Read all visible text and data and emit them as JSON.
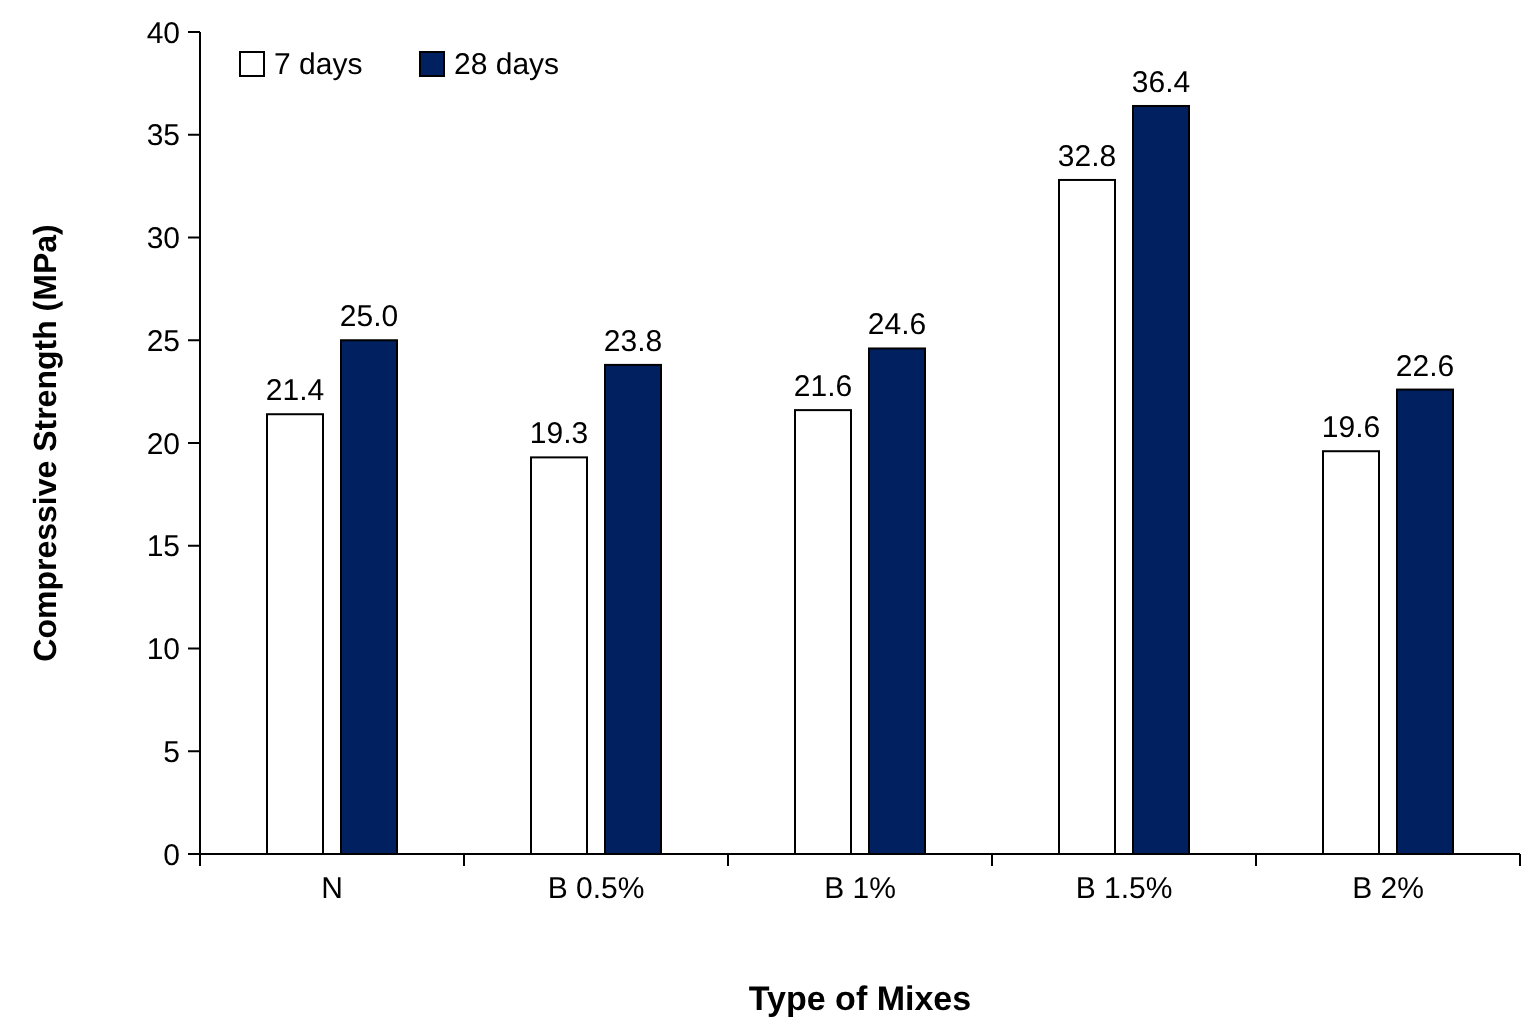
{
  "chart_data": {
    "type": "bar",
    "xlabel": "Type of Mixes",
    "ylabel": "Compressive Strength (MPa)",
    "categories": [
      "N",
      "B 0.5%",
      "B 1%",
      "B 1.5%",
      "B 2%"
    ],
    "series": [
      {
        "name": "7 days",
        "color": "#ffffff",
        "values": [
          21.4,
          19.3,
          21.6,
          32.8,
          19.6
        ],
        "value_labels": [
          "21.4",
          "19.3",
          "21.6",
          "32.8",
          "19.6"
        ]
      },
      {
        "name": "28 days",
        "color": "#002060",
        "values": [
          25.0,
          23.8,
          24.6,
          36.4,
          22.6
        ],
        "value_labels": [
          "25.0",
          "23.8",
          "24.6",
          "36.4",
          "22.6"
        ]
      }
    ],
    "ylim": [
      0,
      40
    ],
    "yticks": [
      0,
      5,
      10,
      15,
      20,
      25,
      30,
      35,
      40
    ],
    "grid": false,
    "legend": "top left"
  }
}
